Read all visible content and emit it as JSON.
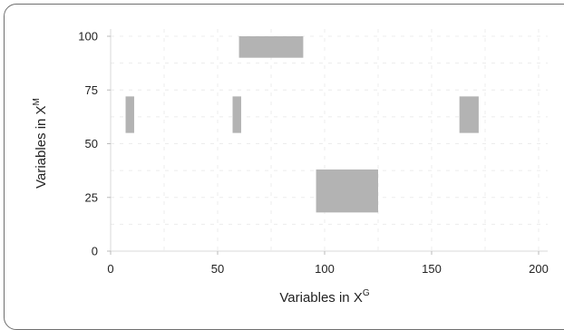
{
  "chart_data": {
    "type": "heatmap",
    "title": "",
    "xlabel": "Variables in X",
    "xlabel_sup": "G",
    "ylabel": "Variables in X",
    "ylabel_sup": "M",
    "xlim": [
      0,
      200
    ],
    "ylim": [
      0,
      100
    ],
    "xticks": [
      "0",
      "50",
      "100",
      "150",
      "200"
    ],
    "yticks": [
      "0",
      "25",
      "50",
      "75",
      "100"
    ],
    "grid": true,
    "blocks": [
      {
        "x": [
          60,
          90
        ],
        "y": [
          90,
          100
        ]
      },
      {
        "x": [
          7,
          11
        ],
        "y": [
          55,
          72
        ]
      },
      {
        "x": [
          57,
          61
        ],
        "y": [
          55,
          72
        ]
      },
      {
        "x": [
          163,
          172
        ],
        "y": [
          55,
          72
        ]
      },
      {
        "x": [
          96,
          125
        ],
        "y": [
          18,
          38
        ]
      }
    ],
    "block_color": "#b3b3b3"
  }
}
